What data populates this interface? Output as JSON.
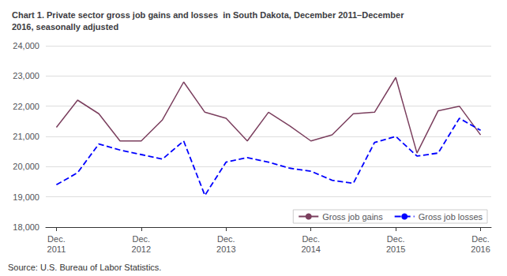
{
  "chart_data": {
    "type": "line",
    "title": "Chart 1. Private sector gross job gains and losses  in South Dakota, December 2011–December\n2016, seasonally adjusted",
    "annotations": [
      "Source: U.S. Bureau of Labor Statistics."
    ],
    "categories": [
      "Dec.\n2011",
      null,
      null,
      null,
      "Dec.\n2012",
      null,
      null,
      null,
      "Dec.\n2013",
      null,
      null,
      null,
      "Dec.\n2014",
      null,
      null,
      null,
      "Dec.\n2015",
      null,
      null,
      null,
      "Dec.\n2016"
    ],
    "series": [
      {
        "name": "Gross job gains",
        "color": "#7B3F5E",
        "line_style": "solid",
        "values": [
          21300,
          22200,
          21750,
          20850,
          20850,
          21550,
          22800,
          21800,
          21600,
          20850,
          21800,
          21350,
          20850,
          21050,
          21750,
          21800,
          22950,
          20450,
          21850,
          22000,
          21050
        ]
      },
      {
        "name": "Gross job losses",
        "color": "#0000FF",
        "line_style": "dashed",
        "values": [
          19400,
          19800,
          20750,
          20550,
          20400,
          20250,
          20850,
          19050,
          20150,
          20300,
          20150,
          19950,
          19850,
          19550,
          19450,
          20800,
          21000,
          20350,
          20450,
          21600,
          21200
        ]
      }
    ],
    "ylim": [
      18000,
      24000
    ],
    "yticks": [
      {
        "value": 18000,
        "label": "18,000"
      },
      {
        "value": 19000,
        "label": "19,000"
      },
      {
        "value": 20000,
        "label": "20,000"
      },
      {
        "value": 21000,
        "label": "21,000"
      },
      {
        "value": 22000,
        "label": "22,000"
      },
      {
        "value": 23000,
        "label": "23,000"
      },
      {
        "value": 24000,
        "label": "24,000"
      }
    ],
    "grid": true,
    "legend": "lower right"
  }
}
